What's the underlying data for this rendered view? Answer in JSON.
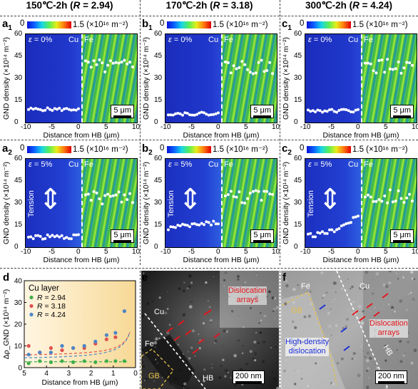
{
  "columns": [
    {
      "title_prefix": "150℃-2h (",
      "r_var": "R",
      "r_value": " = 2.94)"
    },
    {
      "title_prefix": "170℃-2h (",
      "r_var": "R",
      "r_value": " = 3.18)"
    },
    {
      "title_prefix": "300℃-2h (",
      "r_var": "R",
      "r_value": " = 4.24)"
    }
  ],
  "panel_labels": {
    "a1": "a",
    "a1_sub": "1",
    "b1": "b",
    "b1_sub": "1",
    "c1": "c",
    "c1_sub": "1",
    "a2": "a",
    "a2_sub": "2",
    "b2": "b",
    "b2_sub": "2",
    "c2": "c",
    "c2_sub": "2",
    "d": "d",
    "e": "e",
    "f": "f"
  },
  "colorbar": {
    "min": "0",
    "max": "1.5 (×10¹⁶ m⁻²)"
  },
  "map_text": {
    "eps_symbol": "ε",
    "eps_row1": " = 0%",
    "eps_row2": " = 5%",
    "cu": "Cu",
    "fe": "Fe",
    "tension": "Tension",
    "scale": "5 μm"
  },
  "map_axes": {
    "xlabel": "Distance from HB (μm)",
    "ylabel": "GND density (×10¹⁴ m⁻²)",
    "xticks": [
      "-10",
      "-5",
      "0",
      "5",
      "10"
    ],
    "yticks": [
      "60",
      "45",
      "30",
      "15",
      "0"
    ]
  },
  "colors": {
    "cu_blue": "#1f37c8",
    "fe_green": "#5fce3a",
    "hb_line": "#ffffff",
    "series_294": "#3fae4a",
    "series_318": "#e0524f",
    "series_424": "#4d86c7"
  },
  "chart_data": {
    "type": "scatter",
    "legend_title": "Cu layer",
    "xlabel": "Distance from HB (μm)",
    "ylabel": "Δρ_GND (×10¹⁴ m⁻²)",
    "xlim": [
      5,
      0
    ],
    "ylim": [
      0,
      40
    ],
    "xticks": [
      "5",
      "4",
      "3",
      "2",
      "1",
      "0"
    ],
    "yticks": [
      "0",
      "10",
      "20",
      "30",
      "40"
    ],
    "legend_position": "top-left",
    "series": [
      {
        "name_var": "R",
        "name": " = 2.94",
        "color": "#3fae4a",
        "x": [
          4.8,
          4.3,
          3.8,
          3.3,
          2.8,
          2.3,
          1.8,
          1.3,
          0.9,
          0.5
        ],
        "y": [
          2,
          3,
          2.5,
          3,
          2.5,
          3,
          2.5,
          3,
          3,
          3
        ]
      },
      {
        "name_var": "R",
        "name": " = 3.18",
        "color": "#e0524f",
        "x": [
          4.8,
          4.3,
          3.8,
          3.3,
          2.8,
          2.3,
          1.8,
          1.3,
          0.9,
          0.5
        ],
        "y": [
          10,
          7,
          9,
          8,
          9,
          9,
          11,
          13,
          14,
          26
        ]
      },
      {
        "name_var": "R",
        "name": " = 4.24",
        "color": "#4d86c7",
        "x": [
          4.8,
          4.3,
          3.8,
          3.3,
          2.8,
          2.3,
          1.8,
          1.3,
          0.9,
          0.5
        ],
        "y": [
          6,
          7,
          7,
          10,
          9,
          10,
          12,
          15,
          16,
          26
        ]
      }
    ]
  },
  "tem_e": {
    "cu": "Cu",
    "fe": "Fe",
    "gb": "GB",
    "hb": "HB",
    "arrays": "Dislocation\narrays",
    "scale": "200 nm"
  },
  "tem_f": {
    "fe": "Fe",
    "cu": "Cu",
    "gb": "GB",
    "hb": "HB",
    "arrays": "Dislocation\narrays",
    "hdd": "High-density\ndislocation",
    "scale": "200 nm"
  }
}
